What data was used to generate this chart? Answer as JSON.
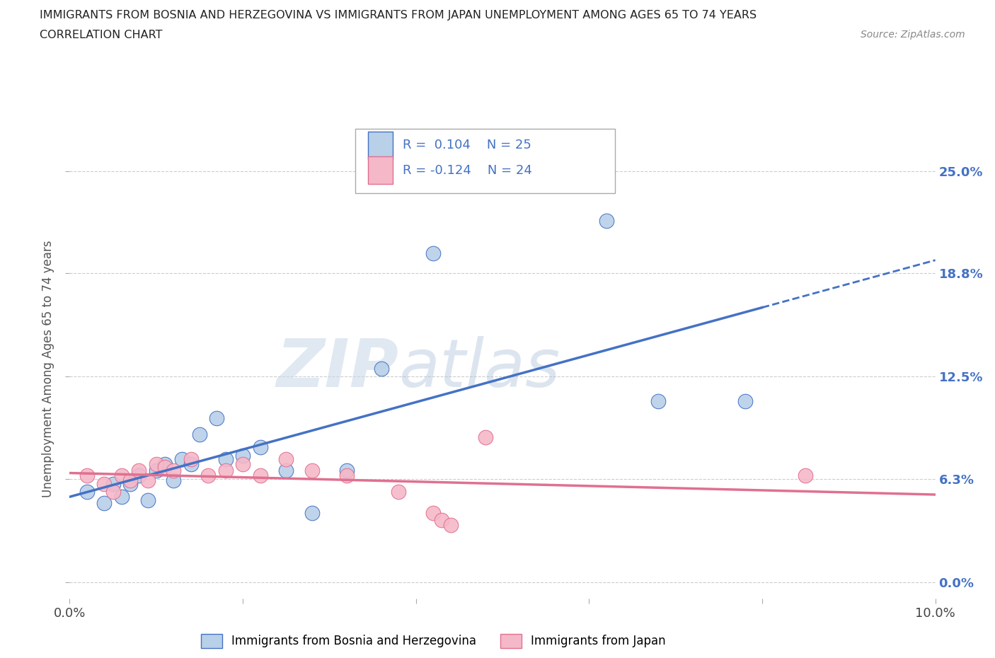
{
  "title_line1": "IMMIGRANTS FROM BOSNIA AND HERZEGOVINA VS IMMIGRANTS FROM JAPAN UNEMPLOYMENT AMONG AGES 65 TO 74 YEARS",
  "title_line2": "CORRELATION CHART",
  "source_text": "Source: ZipAtlas.com",
  "ylabel": "Unemployment Among Ages 65 to 74 years",
  "xlim": [
    0.0,
    0.1
  ],
  "ylim": [
    -0.01,
    0.27
  ],
  "xticks": [
    0.0,
    0.02,
    0.04,
    0.06,
    0.08,
    0.1
  ],
  "xtick_labels": [
    "0.0%",
    "",
    "",
    "",
    "",
    "10.0%"
  ],
  "ytick_labels_right": [
    "0.0%",
    "6.3%",
    "12.5%",
    "18.8%",
    "25.0%"
  ],
  "yticks": [
    0.0,
    0.063,
    0.125,
    0.188,
    0.25
  ],
  "watermark_zip": "ZIP",
  "watermark_atlas": "atlas",
  "legend_label1": "Immigrants from Bosnia and Herzegovina",
  "legend_label2": "Immigrants from Japan",
  "R1": 0.104,
  "N1": 25,
  "R2": -0.124,
  "N2": 24,
  "color1": "#b8d0e8",
  "color2": "#f5b8c8",
  "line_color1": "#4472c4",
  "line_color2": "#e07090",
  "bosnia_x": [
    0.002,
    0.004,
    0.005,
    0.006,
    0.007,
    0.008,
    0.009,
    0.01,
    0.011,
    0.012,
    0.013,
    0.014,
    0.015,
    0.017,
    0.018,
    0.02,
    0.022,
    0.025,
    0.028,
    0.032,
    0.036,
    0.042,
    0.062,
    0.068,
    0.078
  ],
  "bosnia_y": [
    0.055,
    0.048,
    0.06,
    0.052,
    0.06,
    0.065,
    0.05,
    0.068,
    0.072,
    0.062,
    0.075,
    0.072,
    0.09,
    0.1,
    0.075,
    0.077,
    0.082,
    0.068,
    0.042,
    0.068,
    0.13,
    0.2,
    0.22,
    0.11,
    0.11
  ],
  "japan_x": [
    0.002,
    0.004,
    0.005,
    0.006,
    0.007,
    0.008,
    0.009,
    0.01,
    0.011,
    0.012,
    0.014,
    0.016,
    0.018,
    0.02,
    0.022,
    0.025,
    0.028,
    0.032,
    0.038,
    0.042,
    0.043,
    0.044,
    0.048,
    0.085
  ],
  "japan_y": [
    0.065,
    0.06,
    0.055,
    0.065,
    0.062,
    0.068,
    0.062,
    0.072,
    0.07,
    0.068,
    0.075,
    0.065,
    0.068,
    0.072,
    0.065,
    0.075,
    0.068,
    0.065,
    0.055,
    0.042,
    0.038,
    0.035,
    0.088,
    0.065
  ],
  "background_color": "#ffffff",
  "grid_color": "#cccccc"
}
